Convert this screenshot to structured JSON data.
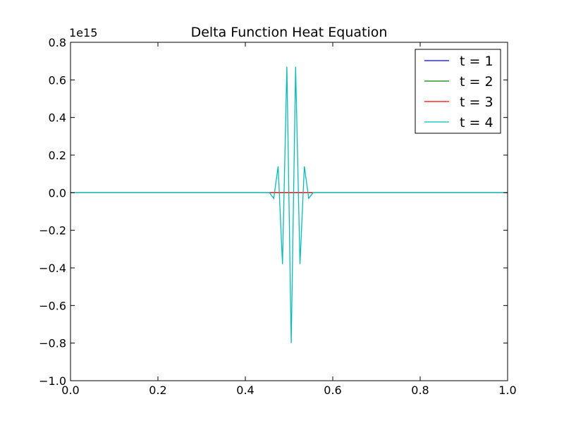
{
  "chart_data": {
    "type": "line",
    "title": "Delta Function Heat Equation",
    "xlabel": "",
    "ylabel": "",
    "y_offset_label": "1e15",
    "xlim": [
      0.0,
      1.0
    ],
    "ylim": [
      -1.0,
      0.8
    ],
    "y_scale_factor": 1000000000000000.0,
    "x_ticks": [
      "0.0",
      "0.2",
      "0.4",
      "0.6",
      "0.8",
      "1.0"
    ],
    "y_ticks": [
      "0.8",
      "0.6",
      "0.4",
      "0.2",
      "0.0",
      "−0.2",
      "−0.4",
      "−0.6",
      "−0.8",
      "−1.0"
    ],
    "x_tick_values": [
      0.0,
      0.2,
      0.4,
      0.6,
      0.8,
      1.0
    ],
    "y_tick_values": [
      0.8,
      0.6,
      0.4,
      0.2,
      0.0,
      -0.2,
      -0.4,
      -0.6,
      -0.8,
      -1.0
    ],
    "legend_position": "top-right",
    "grid": false,
    "series": [
      {
        "name": "t = 1",
        "color": "#0000ff",
        "x": [
          0.0,
          1.0
        ],
        "y": [
          0.0,
          0.0
        ]
      },
      {
        "name": "t = 2",
        "color": "#008000",
        "x": [
          0.0,
          1.0
        ],
        "y": [
          0.0,
          0.0
        ]
      },
      {
        "name": "t = 3",
        "color": "#ff0000",
        "x": [
          0.0,
          0.455,
          0.465,
          0.475,
          0.485,
          0.495,
          0.505,
          0.515,
          0.525,
          0.535,
          0.545,
          0.555,
          1.0
        ],
        "y": [
          0.0,
          0.0,
          0.0,
          0.0,
          0.0,
          0.0,
          0.0,
          0.0,
          0.0,
          0.0,
          0.0,
          0.0,
          0.0
        ]
      },
      {
        "name": "t = 4",
        "color": "#00bfbf",
        "x": [
          0.0,
          0.455,
          0.465,
          0.475,
          0.485,
          0.495,
          0.505,
          0.515,
          0.525,
          0.535,
          0.545,
          0.555,
          1.0
        ],
        "y": [
          0.0,
          0.0,
          -0.03,
          0.14,
          -0.38,
          0.67,
          -0.8,
          0.67,
          -0.38,
          0.14,
          -0.03,
          0.0,
          0.0
        ]
      }
    ]
  }
}
